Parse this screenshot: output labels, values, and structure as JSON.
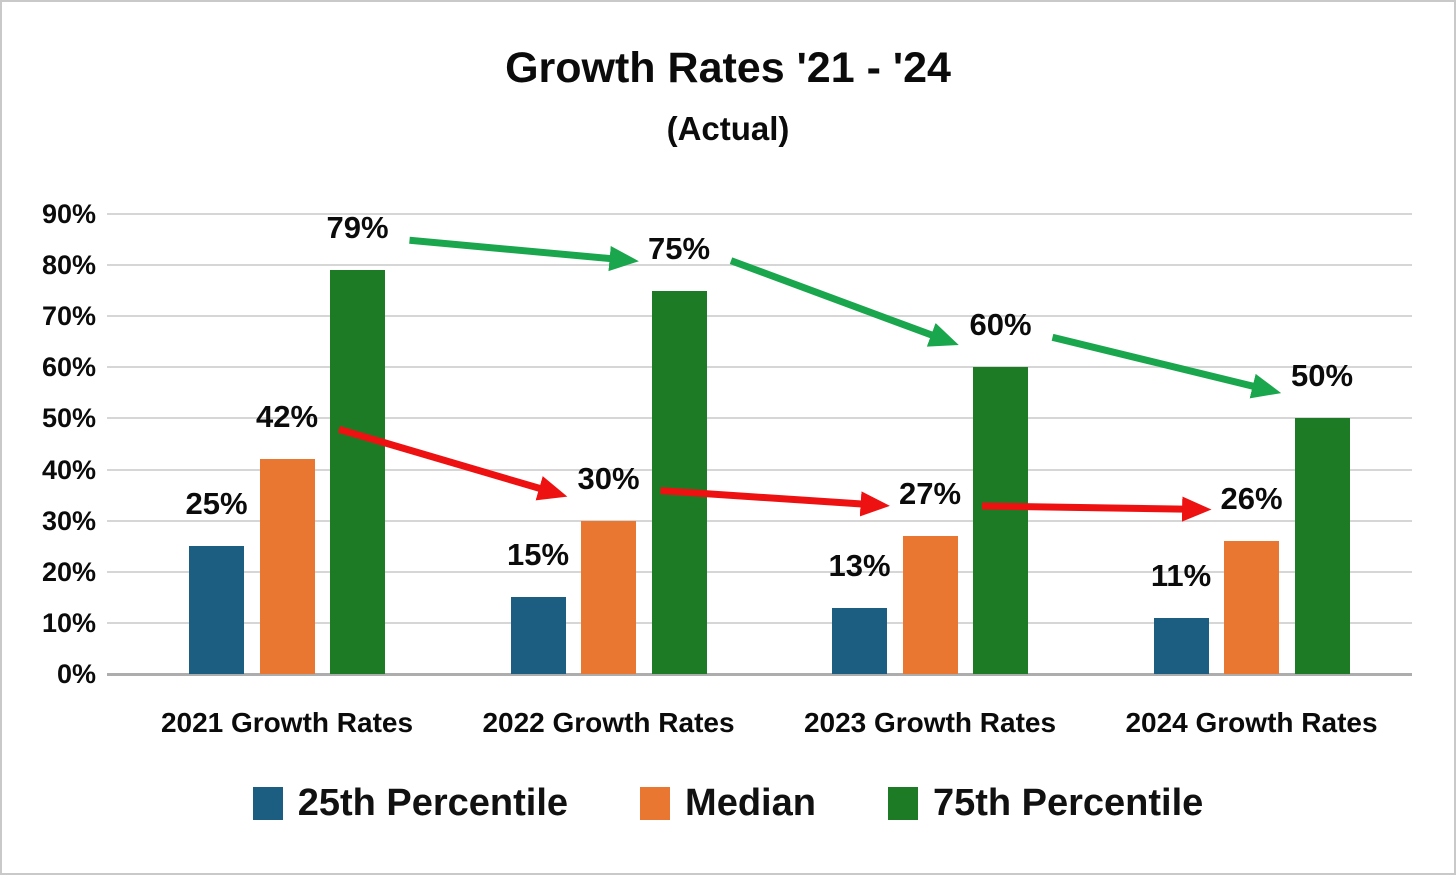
{
  "chart_data": {
    "type": "bar",
    "title": "Growth Rates '21 - '24",
    "subtitle": "(Actual)",
    "categories": [
      "2021 Growth Rates",
      "2022 Growth Rates",
      "2023 Growth Rates",
      "2024 Growth Rates"
    ],
    "series": [
      {
        "name": "25th Percentile",
        "color": "#1b5e82",
        "values": [
          25,
          15,
          13,
          11
        ]
      },
      {
        "name": "Median",
        "color": "#e97732",
        "values": [
          42,
          30,
          27,
          26
        ]
      },
      {
        "name": "75th Percentile",
        "color": "#1e7b25",
        "values": [
          79,
          75,
          60,
          50
        ]
      }
    ],
    "value_label_format": "{v}%",
    "ylabel": "",
    "xlabel": "",
    "ylim": [
      0,
      90
    ],
    "ytick_step": 10,
    "ytick_labels": [
      "0%",
      "10%",
      "20%",
      "30%",
      "40%",
      "50%",
      "60%",
      "70%",
      "80%",
      "90%"
    ],
    "grid": true,
    "legend_position": "bottom",
    "annotations": {
      "trend_arrows": [
        {
          "tracks_series": "75th Percentile",
          "color": "#1aa64c",
          "labels_connected": [
            "79%",
            "75%",
            "60%",
            "50%"
          ]
        },
        {
          "tracks_series": "Median",
          "color": "#ee1111",
          "labels_connected": [
            "42%",
            "30%",
            "27%",
            "26%"
          ]
        }
      ]
    }
  }
}
